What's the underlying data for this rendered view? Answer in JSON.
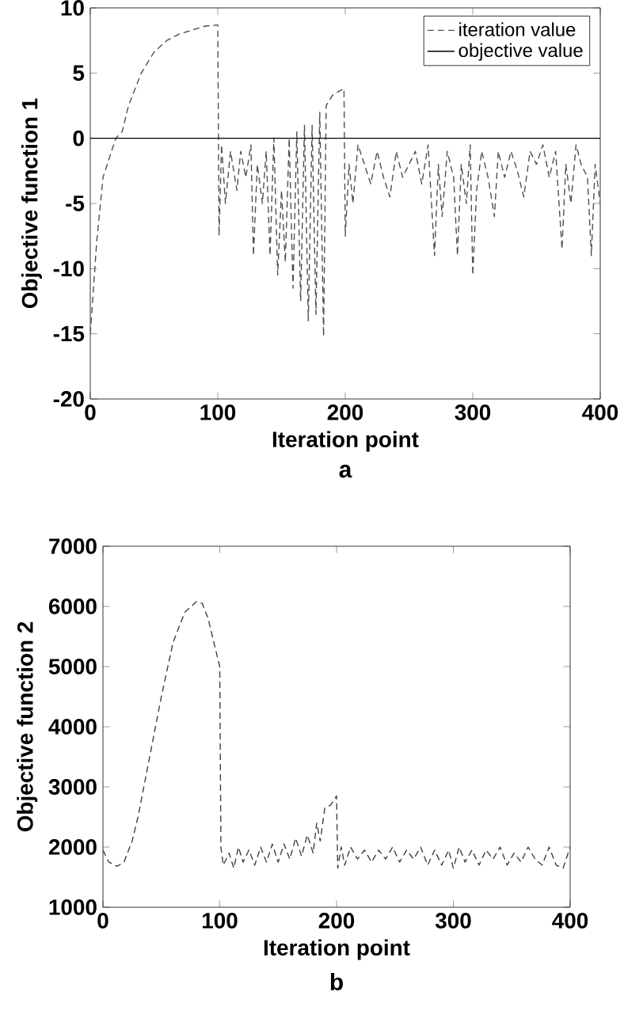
{
  "chart_data": [
    {
      "type": "line",
      "title": "a",
      "xlabel": "Iteration point",
      "ylabel": "Objective function 1",
      "xlim": [
        0,
        400
      ],
      "ylim": [
        -20,
        10
      ],
      "xticks": [
        0,
        100,
        200,
        300,
        400
      ],
      "yticks": [
        -20,
        -15,
        -10,
        -5,
        0,
        5,
        10
      ],
      "legend": "top right",
      "series": [
        {
          "name": "iteration value",
          "color": "#505050",
          "line_style": "dashed",
          "x": [
            0,
            5,
            10,
            20,
            25,
            30,
            40,
            50,
            60,
            70,
            80,
            90,
            100,
            101,
            103,
            106,
            110,
            115,
            118,
            122,
            126,
            128,
            131,
            135,
            138,
            141,
            144,
            147,
            150,
            153,
            156,
            159,
            162,
            165,
            168,
            171,
            174,
            177,
            180,
            183,
            185,
            190,
            195,
            199,
            200,
            203,
            206,
            210,
            215,
            220,
            225,
            230,
            235,
            240,
            245,
            250,
            255,
            260,
            265,
            270,
            273,
            276,
            280,
            285,
            288,
            291,
            295,
            298,
            300,
            303,
            307,
            312,
            317,
            320,
            325,
            330,
            335,
            340,
            345,
            350,
            355,
            360,
            365,
            370,
            373,
            377,
            381,
            385,
            390,
            393,
            396,
            400
          ],
          "values": [
            -15,
            -8,
            -3,
            0,
            0.5,
            2.5,
            5,
            6.6,
            7.5,
            8,
            8.3,
            8.6,
            8.7,
            -7.5,
            -0.5,
            -5,
            -1,
            -4,
            -1,
            -3,
            -0.5,
            -9,
            -2,
            -5,
            -1,
            -9,
            0,
            -10.5,
            -4,
            -9.5,
            0,
            -11.5,
            0.5,
            -12.5,
            1,
            -14,
            1,
            -13.5,
            2,
            -15.2,
            2.5,
            3.3,
            3.6,
            3.8,
            -7.5,
            -2,
            -5,
            -0.5,
            -2,
            -3.5,
            -1,
            -3,
            -4.5,
            -1,
            -3,
            -2,
            -1,
            -3.5,
            -0.5,
            -9,
            -2,
            -6,
            -1,
            -3,
            -9,
            -2,
            -5,
            -0.5,
            -10.5,
            -4,
            -1,
            -3,
            -6,
            -1,
            -3,
            -1,
            -2.5,
            -4.5,
            -1,
            -2,
            -0.5,
            -3,
            -1,
            -8.5,
            -2,
            -5,
            -0.5,
            -2,
            -3,
            -9,
            -2,
            -5
          ]
        },
        {
          "name": "objective value",
          "color": "#000000",
          "line_style": "solid",
          "x": [
            0,
            400
          ],
          "values": [
            0,
            0
          ]
        }
      ]
    },
    {
      "type": "line",
      "title": "b",
      "xlabel": "Iteration point",
      "ylabel": "Objective function 2",
      "xlim": [
        0,
        400
      ],
      "ylim": [
        1000,
        7000
      ],
      "xticks": [
        0,
        100,
        200,
        300,
        400
      ],
      "yticks": [
        1000,
        2000,
        3000,
        4000,
        5000,
        6000,
        7000
      ],
      "series": [
        {
          "color": "#404040",
          "line_style": "dashed",
          "x": [
            0,
            5,
            12,
            18,
            25,
            30,
            40,
            50,
            60,
            70,
            80,
            85,
            90,
            95,
            100,
            101,
            103,
            108,
            112,
            116,
            120,
            125,
            130,
            135,
            140,
            145,
            150,
            155,
            160,
            165,
            170,
            175,
            180,
            183,
            186,
            190,
            195,
            200,
            201,
            204,
            207,
            212,
            218,
            224,
            230,
            236,
            242,
            248,
            254,
            260,
            266,
            272,
            278,
            284,
            290,
            296,
            300,
            305,
            310,
            316,
            322,
            328,
            334,
            340,
            346,
            352,
            358,
            364,
            370,
            376,
            382,
            388,
            394,
            400
          ],
          "values": [
            1950,
            1750,
            1680,
            1750,
            2100,
            2500,
            3500,
            4500,
            5400,
            5900,
            6080,
            6050,
            5800,
            5400,
            5000,
            2000,
            1700,
            1900,
            1650,
            2000,
            1750,
            1950,
            1700,
            2000,
            1750,
            2050,
            1750,
            2050,
            1800,
            2150,
            1850,
            2200,
            1900,
            2400,
            2100,
            2650,
            2700,
            2850,
            1650,
            2000,
            1700,
            2000,
            1800,
            1950,
            1750,
            1950,
            1800,
            2000,
            1750,
            1950,
            1800,
            2000,
            1700,
            1950,
            1700,
            1950,
            1650,
            2000,
            1750,
            1950,
            1700,
            1950,
            1800,
            2000,
            1700,
            1900,
            1750,
            2000,
            1800,
            1700,
            2000,
            1700,
            1650,
            2000
          ]
        }
      ]
    }
  ]
}
